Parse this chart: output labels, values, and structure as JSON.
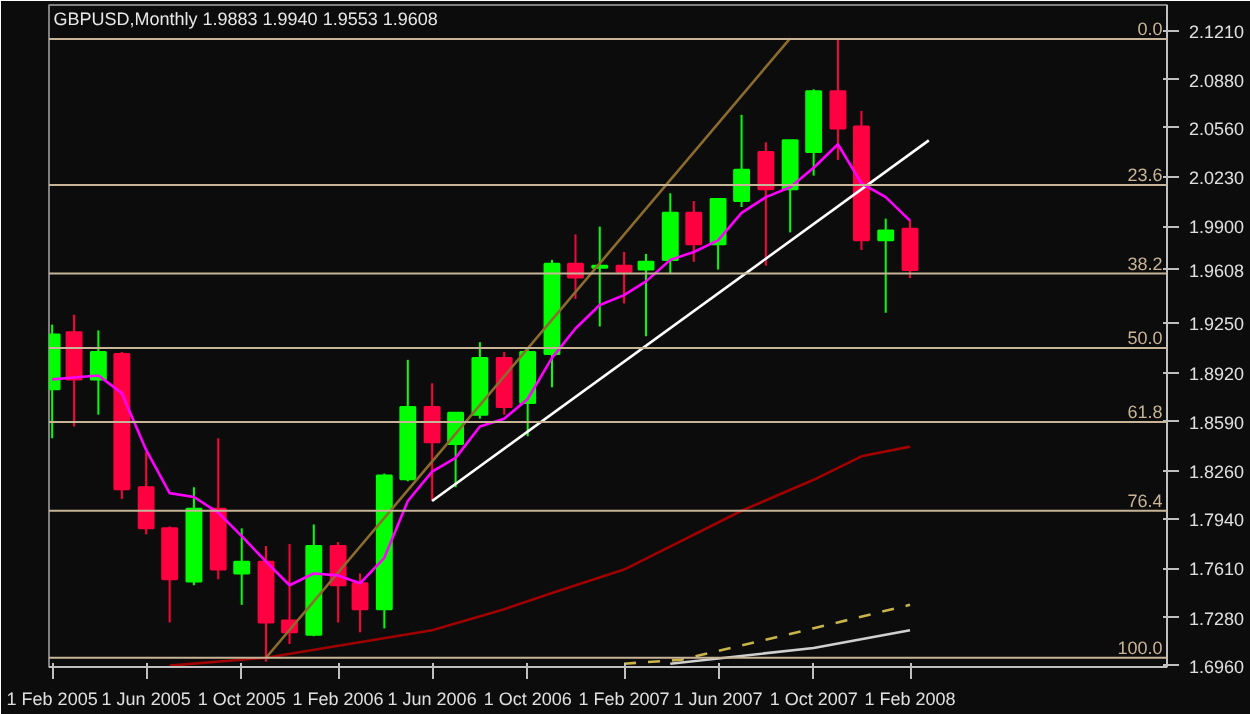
{
  "chart_data": {
    "type": "candlestick",
    "title": "GBPUSD,Monthly  1.9883 1.9940 1.9553 1.9608",
    "x": [
      "2005-02-01",
      "2005-03-01",
      "2005-04-01",
      "2005-05-01",
      "2005-06-01",
      "2005-07-01",
      "2005-08-01",
      "2005-09-01",
      "2005-10-01",
      "2005-11-01",
      "2005-12-01",
      "2006-01-01",
      "2006-02-01",
      "2006-03-01",
      "2006-04-01",
      "2006-05-01",
      "2006-06-01",
      "2006-07-01",
      "2006-08-01",
      "2006-09-01",
      "2006-10-01",
      "2006-11-01",
      "2006-12-01",
      "2007-01-01",
      "2007-02-01",
      "2007-03-01",
      "2007-04-01",
      "2007-05-01",
      "2007-06-01",
      "2007-07-01",
      "2007-08-01",
      "2007-09-01",
      "2007-10-01",
      "2007-11-01",
      "2007-12-01",
      "2008-01-01",
      "2008-02-01"
    ],
    "ohlc": [
      [
        1.8809,
        1.9242,
        1.8481,
        1.9176
      ],
      [
        1.919,
        1.9308,
        1.856,
        1.8875
      ],
      [
        1.8875,
        1.9203,
        1.8639,
        1.9059
      ],
      [
        1.9045,
        1.9059,
        1.8075,
        1.814
      ],
      [
        1.8153,
        1.8389,
        1.7838,
        1.7878
      ],
      [
        1.7878,
        1.7891,
        1.7248,
        1.7537
      ],
      [
        1.7523,
        1.8153,
        1.7497,
        1.8009
      ],
      [
        1.8009,
        1.8481,
        1.7537,
        1.7602
      ],
      [
        1.7576,
        1.7878,
        1.7366,
        1.7655
      ],
      [
        1.7655,
        1.776,
        1.6986,
        1.7248
      ],
      [
        1.7261,
        1.7773,
        1.7104,
        1.7182
      ],
      [
        1.7166,
        1.7904,
        1.7156,
        1.776
      ],
      [
        1.776,
        1.7786,
        1.7248,
        1.7497
      ],
      [
        1.751,
        1.7576,
        1.7182,
        1.7337
      ],
      [
        1.7337,
        1.8245,
        1.7208,
        1.8232
      ],
      [
        1.8206,
        1.9006,
        1.8193,
        1.8691
      ],
      [
        1.8691,
        1.8849,
        1.8061,
        1.8455
      ],
      [
        1.8442,
        1.8651,
        1.8153,
        1.8651
      ],
      [
        1.8639,
        1.9124,
        1.8612,
        1.9019
      ],
      [
        1.9019,
        1.9059,
        1.8639,
        1.8691
      ],
      [
        1.8717,
        1.9085,
        1.8494,
        1.9059
      ],
      [
        1.9045,
        1.9675,
        1.8822,
        1.9649
      ],
      [
        1.9649,
        1.9846,
        1.9413,
        1.9557
      ],
      [
        1.9623,
        1.9898,
        1.9229,
        1.9636
      ],
      [
        1.9636,
        1.9728,
        1.9383,
        1.9596
      ],
      [
        1.961,
        1.9715,
        1.9164,
        1.9662
      ],
      [
        1.9675,
        2.0121,
        1.9583,
        1.999
      ],
      [
        1.999,
        2.0069,
        1.9662,
        1.978
      ],
      [
        1.978,
        2.0082,
        1.961,
        2.0082
      ],
      [
        2.0069,
        2.0646,
        2.0029,
        2.0279
      ],
      [
        2.0397,
        2.0462,
        1.9636,
        2.0148
      ],
      [
        2.0148,
        2.0475,
        1.9859,
        2.0475
      ],
      [
        2.0397,
        2.0817,
        2.0239,
        2.0803
      ],
      [
        2.0803,
        2.1158,
        2.0344,
        2.0554
      ],
      [
        2.0567,
        2.0672,
        1.9741,
        1.9806
      ],
      [
        1.9806,
        1.9951,
        1.9321,
        1.9872
      ],
      [
        1.9883,
        1.994,
        1.9553,
        1.9608
      ]
    ],
    "colors": [
      "#00ff00",
      "#ff0040",
      "#00ff00",
      "#ff0040",
      "#ff0040",
      "#ff0040",
      "#00ff00",
      "#ff0040",
      "#00ff00",
      "#ff0040",
      "#ff0040",
      "#00ff00",
      "#ff0040",
      "#ff0040",
      "#00ff00",
      "#00ff00",
      "#ff0040",
      "#00ff00",
      "#00ff00",
      "#ff0040",
      "#00ff00",
      "#00ff00",
      "#ff0040",
      "#00ff00",
      "#ff0040",
      "#00ff00",
      "#00ff00",
      "#ff0040",
      "#00ff00",
      "#00ff00",
      "#ff0040",
      "#00ff00",
      "#00ff00",
      "#ff0040",
      "#ff0040",
      "#00ff00",
      "#ff0040"
    ],
    "series": [
      {
        "type": "line",
        "color": "#a00000",
        "x": [
          "2005-07-01",
          "2005-11-01",
          "2006-06-01",
          "2006-09-01",
          "2006-11-01",
          "2007-02-01",
          "2007-07-01",
          "2007-10-01",
          "2007-12-01",
          "2008-02-01"
        ],
        "values": [
          1.6959,
          1.7012,
          1.7196,
          1.7337,
          1.7445,
          1.7602,
          1.7996,
          1.8203,
          1.836,
          1.8425
        ]
      },
      {
        "type": "line",
        "color": "#c8b44a",
        "line_style": "dashed",
        "x": [
          "2007-02-01",
          "2007-04-15",
          "2007-10-01",
          "2008-02-01"
        ],
        "values": [
          1.6972,
          1.6999,
          1.7209,
          1.7366
        ]
      },
      {
        "type": "line",
        "color": "#d0d0d0",
        "x": [
          "2007-04-01",
          "2007-10-01",
          "2008-02-01"
        ],
        "values": [
          1.6972,
          1.7077,
          1.7196
        ]
      },
      {
        "type": "line",
        "color": "#8b6c2e",
        "x": [
          "2005-11-01",
          "2007-09-01"
        ],
        "values": [
          1.7012,
          2.1158
        ]
      },
      {
        "type": "line",
        "color": "#ffffff",
        "x": [
          "2006-06-01",
          "2008-02-25"
        ],
        "values": [
          1.8061,
          2.0475
        ]
      },
      {
        "type": "line",
        "color": "#ff00ff",
        "x": [
          "2005-02-01",
          "2005-03-01",
          "2005-04-01",
          "2005-05-01",
          "2005-06-01",
          "2005-07-01",
          "2005-08-01",
          "2005-09-01",
          "2005-10-01",
          "2005-11-01",
          "2005-12-01",
          "2006-01-01",
          "2006-02-01",
          "2006-03-01",
          "2006-04-01",
          "2006-05-01",
          "2006-06-01",
          "2006-07-01",
          "2006-08-01",
          "2006-09-01",
          "2006-10-01",
          "2006-11-01",
          "2006-12-01",
          "2007-01-01",
          "2007-02-01",
          "2007-03-01",
          "2007-04-01",
          "2007-05-01",
          "2007-06-01",
          "2007-07-01",
          "2007-08-01",
          "2007-09-01",
          "2007-10-01",
          "2007-11-01",
          "2007-12-01",
          "2008-01-01",
          "2008-02-01"
        ],
        "values": [
          1.8875,
          1.8888,
          1.8901,
          1.8783,
          1.8403,
          1.8114,
          1.8088,
          1.7983,
          1.7826,
          1.7655,
          1.7497,
          1.7576,
          1.7563,
          1.751,
          1.7681,
          1.8061,
          1.8258,
          1.835,
          1.856,
          1.8612,
          1.8744,
          1.9019,
          1.9216,
          1.9373,
          1.9439,
          1.9531,
          1.9675,
          1.9728,
          1.9806,
          1.999,
          2.0095,
          2.0161,
          2.0292,
          2.0449,
          2.0187,
          2.0095,
          1.9938
        ]
      }
    ],
    "ref_lines": [
      {
        "axis": "y",
        "value": 2.1154,
        "color": "#c8b496"
      },
      {
        "axis": "y",
        "value": 2.0177,
        "color": "#c8b496"
      },
      {
        "axis": "y",
        "value": 1.9583,
        "color": "#c8b496"
      },
      {
        "axis": "y",
        "value": 1.9085,
        "color": "#c8b496"
      },
      {
        "axis": "y",
        "value": 1.859,
        "color": "#c8b496"
      },
      {
        "axis": "y",
        "value": 1.7996,
        "color": "#c8b496"
      },
      {
        "axis": "y",
        "value": 1.7012,
        "color": "#c8b496"
      }
    ],
    "annotations": [
      {
        "text": "0.0",
        "x": "2008-12-25",
        "y": 2.1154
      },
      {
        "text": "23.6",
        "x": "2008-12-25",
        "y": 2.0177
      },
      {
        "text": "38.2",
        "x": "2008-12-25",
        "y": 1.9583
      },
      {
        "text": "50.0",
        "x": "2008-12-25",
        "y": 1.9085
      },
      {
        "text": "61.8",
        "x": "2008-12-25",
        "y": 1.859
      },
      {
        "text": "76.4",
        "x": "2008-12-25",
        "y": 1.7996
      },
      {
        "text": "100.0",
        "x": "2008-12-25",
        "y": 1.7012
      }
    ],
    "xlim": [
      "2005-01-28",
      "2008-12-25"
    ],
    "xticks": [
      {
        "value": "2005-02-01",
        "label": "1 Feb 2005"
      },
      {
        "value": "2005-06-01",
        "label": "1 Jun 2005"
      },
      {
        "value": "2005-10-01",
        "label": "1 Oct 2005"
      },
      {
        "value": "2006-02-01",
        "label": "1 Feb 2006"
      },
      {
        "value": "2006-06-01",
        "label": "1 Jun 2006"
      },
      {
        "value": "2006-10-01",
        "label": "1 Oct 2006"
      },
      {
        "value": "2007-02-01",
        "label": "1 Feb 2007"
      },
      {
        "value": "2007-06-01",
        "label": "1 Jun 2007"
      },
      {
        "value": "2007-10-01",
        "label": "1 Oct 2007"
      },
      {
        "value": "2008-02-01",
        "label": "1 Feb 2008"
      }
    ],
    "ylim": [
      1.695,
      2.1381
    ],
    "yticks": [
      {
        "value": 2.121,
        "label": "2.1210"
      },
      {
        "value": 2.088,
        "label": "2.0880"
      },
      {
        "value": 2.056,
        "label": "2.0560"
      },
      {
        "value": 2.023,
        "label": "2.0230"
      },
      {
        "value": 1.99,
        "label": "1.9900"
      },
      {
        "value": 1.9608,
        "label": "1.9608"
      },
      {
        "value": 1.925,
        "label": "1.9250"
      },
      {
        "value": 1.892,
        "label": "1.8920"
      },
      {
        "value": 1.859,
        "label": "1.8590"
      },
      {
        "value": 1.826,
        "label": "1.8260"
      },
      {
        "value": 1.794,
        "label": "1.7940"
      },
      {
        "value": 1.761,
        "label": "1.7610"
      },
      {
        "value": 1.728,
        "label": "1.7280"
      },
      {
        "value": 1.696,
        "label": "1.6960"
      }
    ],
    "grid": false
  }
}
